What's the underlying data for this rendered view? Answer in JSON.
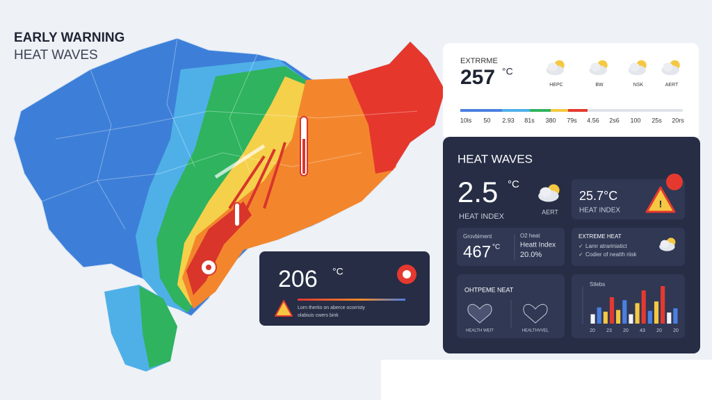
{
  "header": {
    "title": "EARLY WARNING",
    "subtitle": "HEAT WAVES"
  },
  "top_card": {
    "label": "EXTRRME",
    "value": "257",
    "unit": "°C",
    "forecast": [
      "HEPC",
      "BW",
      "NSK",
      "AERT"
    ],
    "scale": [
      "10ls",
      "50",
      "2.93",
      "81s",
      "380",
      "79s",
      "4.56",
      "2s6",
      "100",
      "25s",
      "20rs"
    ]
  },
  "panel": {
    "title": "HEAT WAVES",
    "value": "2.5",
    "unit": "°C",
    "icon_label": "AERT",
    "value_label": "HEAT INDEX",
    "index_card": {
      "value": "25.7°C",
      "label": "HEAT INDEX"
    },
    "stat_card": {
      "label": "Grovbiment",
      "value": "467",
      "unit": "°C",
      "side": [
        "O2 heat",
        "Heatt Index",
        "20.0%"
      ]
    },
    "extreme_card": {
      "title": "EXTREME HEAT",
      "items": [
        "Lamr atrariniatict",
        "Codier of neatth riisk"
      ]
    },
    "health_card": {
      "title": "OHTPEME NEAT",
      "labels": [
        "HEALTH WEIT",
        "HEALTHVVEL"
      ]
    },
    "bar_card": {
      "title": "Stlebs",
      "values": [
        22,
        38,
        28,
        62,
        32,
        55,
        22,
        48,
        78,
        30,
        52,
        88,
        26,
        36
      ],
      "colors": [
        "#f2f4f8",
        "#4b7fe0",
        "#f5c842",
        "#e5392f",
        "#f5c842",
        "#4b7fe0",
        "#f2f4f8",
        "#f5c842",
        "#e5392f",
        "#4b7fe0",
        "#f5c842",
        "#e5392f",
        "#f2f4f8",
        "#4b7fe0"
      ],
      "labels": [
        "20",
        "23",
        "20",
        "43",
        "20",
        "20"
      ]
    }
  },
  "map_card": {
    "value": "206",
    "unit": "°C",
    "lines": [
      "Lorn thertio on aberce ocorristy",
      "olabiuis cwers bink"
    ]
  }
}
